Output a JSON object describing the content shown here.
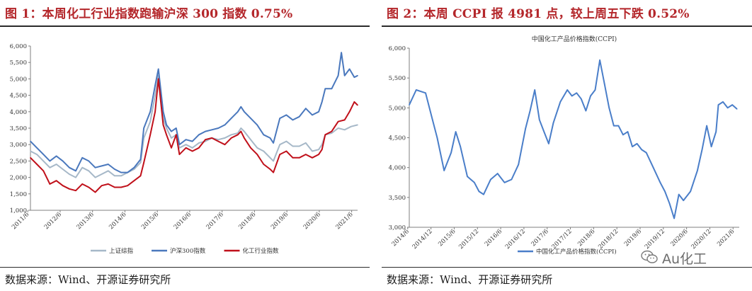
{
  "left": {
    "figure_title": "图 1：本周化工行业指数跑输沪深 300 指数 0.75%",
    "source": "数据来源：Wind、开源证券研究所"
  },
  "right": {
    "figure_title": "图 2：本周 CCPI 报 4981 点，较上周五下跌 0.52%",
    "source": "数据来源：Wind、开源证券研究所"
  },
  "watermark": {
    "text": "Au化工",
    "icon": "wechat-icon"
  },
  "chart_data": [
    {
      "type": "line",
      "title": "",
      "xlabel": "",
      "ylabel": "",
      "ylim": [
        1000,
        6000
      ],
      "yticks": [
        "1,000",
        "1,500",
        "2,000",
        "2,500",
        "3,000",
        "3,500",
        "4,000",
        "4,500",
        "5,000",
        "5,500",
        "6,000"
      ],
      "xticks": [
        "2011/6",
        "2012/6",
        "2013/6",
        "2014/6",
        "2015/6",
        "2016/6",
        "2017/6",
        "2018/6",
        "2019/6",
        "2020/6",
        "2021/6"
      ],
      "xrange": [
        2011.5,
        2021.6
      ],
      "legend_position": "bottom",
      "grid": false,
      "series": [
        {
          "name": "上证综指",
          "color": "#a6b8c8",
          "x": [
            2011.5,
            2011.7,
            2011.9,
            2012.1,
            2012.3,
            2012.5,
            2012.7,
            2012.9,
            2013.1,
            2013.3,
            2013.5,
            2013.7,
            2013.9,
            2014.1,
            2014.3,
            2014.5,
            2014.7,
            2014.9,
            2015.0,
            2015.2,
            2015.35,
            2015.45,
            2015.6,
            2015.7,
            2015.85,
            2016.0,
            2016.1,
            2016.3,
            2016.5,
            2016.7,
            2016.9,
            2017.1,
            2017.3,
            2017.5,
            2017.7,
            2017.9,
            2018.0,
            2018.1,
            2018.3,
            2018.5,
            2018.7,
            2018.9,
            2019.0,
            2019.2,
            2019.4,
            2019.6,
            2019.8,
            2020.0,
            2020.2,
            2020.4,
            2020.5,
            2020.6,
            2020.8,
            2021.0,
            2021.2,
            2021.4,
            2021.6
          ],
          "values": [
            2800,
            2700,
            2500,
            2300,
            2400,
            2250,
            2100,
            2000,
            2300,
            2200,
            2000,
            2100,
            2200,
            2050,
            2050,
            2150,
            2250,
            2450,
            3200,
            3700,
            4500,
            5100,
            3800,
            3500,
            3200,
            3300,
            2900,
            3000,
            2900,
            3050,
            3100,
            3200,
            3150,
            3200,
            3300,
            3350,
            3500,
            3400,
            3150,
            2900,
            2800,
            2600,
            2500,
            3000,
            3100,
            2950,
            2950,
            3050,
            2800,
            2850,
            3000,
            3300,
            3350,
            3500,
            3450,
            3550,
            3600
          ]
        },
        {
          "name": "沪深300指数",
          "color": "#4a78bd",
          "x": [
            2011.5,
            2011.7,
            2011.9,
            2012.1,
            2012.3,
            2012.5,
            2012.7,
            2012.9,
            2013.1,
            2013.3,
            2013.5,
            2013.7,
            2013.9,
            2014.1,
            2014.3,
            2014.5,
            2014.7,
            2014.9,
            2015.0,
            2015.2,
            2015.35,
            2015.45,
            2015.6,
            2015.7,
            2015.85,
            2016.0,
            2016.1,
            2016.3,
            2016.5,
            2016.7,
            2016.9,
            2017.1,
            2017.3,
            2017.5,
            2017.7,
            2017.9,
            2018.0,
            2018.1,
            2018.3,
            2018.5,
            2018.7,
            2018.9,
            2019.0,
            2019.2,
            2019.4,
            2019.6,
            2019.8,
            2020.0,
            2020.2,
            2020.4,
            2020.5,
            2020.6,
            2020.8,
            2021.0,
            2021.1,
            2021.2,
            2021.35,
            2021.5,
            2021.6
          ],
          "values": [
            3100,
            2900,
            2700,
            2500,
            2650,
            2500,
            2300,
            2200,
            2600,
            2500,
            2300,
            2350,
            2400,
            2250,
            2150,
            2150,
            2300,
            2550,
            3500,
            4000,
            4800,
            5300,
            4000,
            3600,
            3400,
            3500,
            3000,
            3150,
            3100,
            3300,
            3400,
            3450,
            3500,
            3600,
            3800,
            4000,
            4150,
            4000,
            3800,
            3600,
            3300,
            3200,
            3050,
            3800,
            3900,
            3750,
            3850,
            4100,
            3900,
            4000,
            4300,
            4700,
            4700,
            5100,
            5800,
            5100,
            5300,
            5050,
            5100
          ]
        },
        {
          "name": "化工行业指数",
          "color": "#c0101a",
          "x": [
            2011.5,
            2011.7,
            2011.9,
            2012.1,
            2012.3,
            2012.5,
            2012.7,
            2012.9,
            2013.1,
            2013.3,
            2013.5,
            2013.7,
            2013.9,
            2014.1,
            2014.3,
            2014.5,
            2014.7,
            2014.9,
            2015.0,
            2015.2,
            2015.35,
            2015.45,
            2015.6,
            2015.7,
            2015.85,
            2016.0,
            2016.1,
            2016.3,
            2016.5,
            2016.7,
            2016.9,
            2017.1,
            2017.3,
            2017.5,
            2017.7,
            2017.9,
            2018.0,
            2018.1,
            2018.3,
            2018.5,
            2018.7,
            2018.9,
            2019.0,
            2019.2,
            2019.4,
            2019.6,
            2019.8,
            2020.0,
            2020.2,
            2020.4,
            2020.5,
            2020.6,
            2020.8,
            2021.0,
            2021.2,
            2021.35,
            2021.5,
            2021.6
          ],
          "values": [
            2600,
            2400,
            2200,
            1800,
            1900,
            1750,
            1650,
            1600,
            1800,
            1700,
            1550,
            1750,
            1800,
            1700,
            1700,
            1750,
            1900,
            2050,
            2450,
            3300,
            4000,
            5000,
            3600,
            3300,
            2900,
            3300,
            2700,
            2900,
            2800,
            2900,
            3150,
            3200,
            3100,
            3000,
            3200,
            3300,
            3400,
            3200,
            2900,
            2700,
            2400,
            2250,
            2150,
            2700,
            2800,
            2600,
            2600,
            2700,
            2600,
            2700,
            2850,
            3300,
            3400,
            3700,
            3750,
            4000,
            4300,
            4200
          ]
        }
      ]
    },
    {
      "type": "line",
      "title": "中国化工产品价格指数(CCPI)",
      "xlabel": "",
      "ylabel": "",
      "ylim": [
        3000,
        6000
      ],
      "yticks": [
        "3,000",
        "3,500",
        "4,000",
        "4,500",
        "5,000",
        "5,500",
        "6,000"
      ],
      "xticks": [
        "2014/6",
        "2014/12",
        "2015/6",
        "2015/12",
        "2016/6",
        "2016/12",
        "2017/6",
        "2017/12",
        "2018/6",
        "2018/12",
        "2019/6",
        "2019/12",
        "2020/6",
        "2020/12",
        "2021/6"
      ],
      "xrange": [
        2014.45,
        2021.55
      ],
      "legend_position": "bottom",
      "grid": false,
      "series": [
        {
          "name": "中国化工产品价格指数(CCPI)",
          "color": "#4a7ec9",
          "x": [
            2014.45,
            2014.6,
            2014.8,
            2014.95,
            2015.05,
            2015.2,
            2015.35,
            2015.45,
            2015.55,
            2015.7,
            2015.85,
            2015.95,
            2016.05,
            2016.2,
            2016.35,
            2016.5,
            2016.65,
            2016.8,
            2016.95,
            2017.05,
            2017.15,
            2017.25,
            2017.35,
            2017.45,
            2017.55,
            2017.7,
            2017.85,
            2017.95,
            2018.05,
            2018.15,
            2018.25,
            2018.35,
            2018.45,
            2018.55,
            2018.65,
            2018.75,
            2018.85,
            2018.95,
            2019.05,
            2019.15,
            2019.25,
            2019.35,
            2019.45,
            2019.55,
            2019.7,
            2019.85,
            2019.95,
            2020.05,
            2020.15,
            2020.25,
            2020.35,
            2020.5,
            2020.65,
            2020.75,
            2020.85,
            2020.95,
            2021.05,
            2021.1,
            2021.2,
            2021.3,
            2021.4,
            2021.5
          ],
          "values": [
            5050,
            5300,
            5250,
            4800,
            4500,
            3950,
            4250,
            4600,
            4350,
            3850,
            3750,
            3600,
            3550,
            3800,
            3900,
            3750,
            3800,
            4050,
            4650,
            4950,
            5300,
            4800,
            4600,
            4400,
            4750,
            5100,
            5300,
            5200,
            5250,
            5150,
            4950,
            5200,
            5300,
            5800,
            5400,
            5000,
            4700,
            4700,
            4550,
            4600,
            4350,
            4400,
            4300,
            4250,
            4000,
            3750,
            3600,
            3400,
            3150,
            3550,
            3450,
            3600,
            3950,
            4300,
            4700,
            4350,
            4600,
            5050,
            5100,
            5000,
            5050,
            4981
          ]
        }
      ]
    }
  ]
}
